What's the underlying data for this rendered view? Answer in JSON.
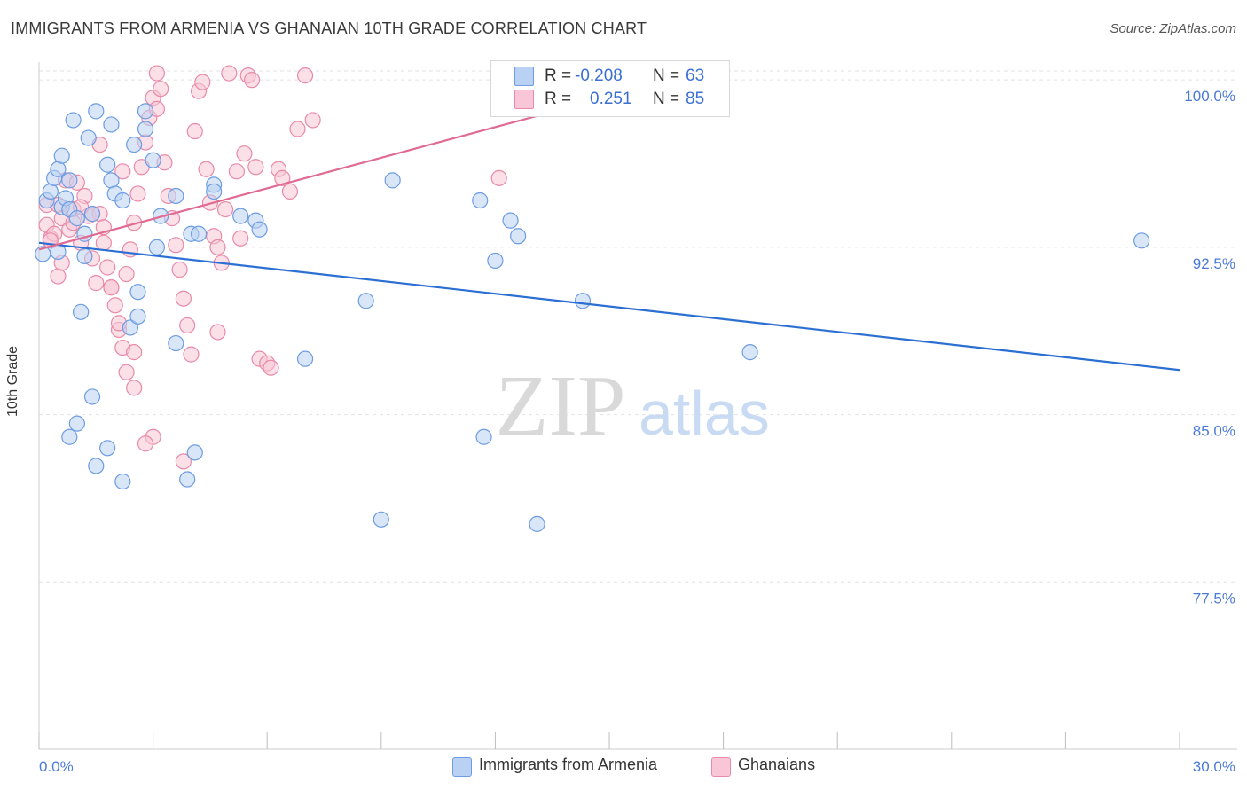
{
  "title": "IMMIGRANTS FROM ARMENIA VS GHANAIAN 10TH GRADE CORRELATION CHART",
  "source": "Source: ZipAtlas.com",
  "watermark_zip": "ZIP",
  "watermark_atlas": "atlas",
  "colors": {
    "blue_fill": "#b9d1f3",
    "blue_stroke": "#6d9ce2",
    "blue_line": "#2b6fd3",
    "pink_fill": "#f8c6d6",
    "pink_stroke": "#e98aa9",
    "pink_line": "#e06a92",
    "grid": "#e2e2e2",
    "tick_text": "#4b7bd6"
  },
  "stats": {
    "r_label": "R =",
    "n_label": "N =",
    "blue_r": "-0.208",
    "blue_n": "63",
    "pink_r": "0.251",
    "pink_n": "85"
  },
  "legend": {
    "blue": "Immigrants from Armenia",
    "pink": "Ghanaians"
  },
  "chart_data": {
    "type": "scatter",
    "title": "IMMIGRANTS FROM ARMENIA VS GHANAIAN 10TH GRADE CORRELATION CHART",
    "xlabel": "",
    "ylabel": "10th Grade",
    "xlim": [
      0.0,
      30.0
    ],
    "ylim": [
      70.0,
      100.8
    ],
    "x_tick_labels": [
      "0.0%",
      "30.0%"
    ],
    "y_ticks": [
      77.5,
      85.0,
      92.5,
      100.0
    ],
    "y_tick_labels": [
      "77.5%",
      "85.0%",
      "92.5%",
      "100.0%"
    ],
    "grid": true,
    "series": [
      {
        "name": "Immigrants from Armenia",
        "color": "blue",
        "r": -0.208,
        "n": 63,
        "trend": {
          "x": [
            0.0,
            30.0
          ],
          "y": [
            92.7,
            87.0
          ]
        },
        "points": [
          [
            0.1,
            92.2
          ],
          [
            0.2,
            94.6
          ],
          [
            0.3,
            95.0
          ],
          [
            0.4,
            95.6
          ],
          [
            0.5,
            92.3
          ],
          [
            0.5,
            96.0
          ],
          [
            0.6,
            96.6
          ],
          [
            0.6,
            94.3
          ],
          [
            0.7,
            94.7
          ],
          [
            0.8,
            95.5
          ],
          [
            0.8,
            94.2
          ],
          [
            0.9,
            98.2
          ],
          [
            1.0,
            93.8
          ],
          [
            1.1,
            89.6
          ],
          [
            1.2,
            92.1
          ],
          [
            1.2,
            93.1
          ],
          [
            1.3,
            97.4
          ],
          [
            1.4,
            94.0
          ],
          [
            1.5,
            98.6
          ],
          [
            1.8,
            96.2
          ],
          [
            1.9,
            98.0
          ],
          [
            1.9,
            95.5
          ],
          [
            2.0,
            94.9
          ],
          [
            2.2,
            94.6
          ],
          [
            2.4,
            88.9
          ],
          [
            2.6,
            89.4
          ],
          [
            2.6,
            90.5
          ],
          [
            2.8,
            97.8
          ],
          [
            2.8,
            98.6
          ],
          [
            3.1,
            92.5
          ],
          [
            3.2,
            93.9
          ],
          [
            3.6,
            94.8
          ],
          [
            4.0,
            93.1
          ],
          [
            4.6,
            95.3
          ],
          [
            4.6,
            95.0
          ],
          [
            4.1,
            83.3
          ],
          [
            3.6,
            88.2
          ],
          [
            3.9,
            82.1
          ],
          [
            3.0,
            96.4
          ],
          [
            2.5,
            97.1
          ],
          [
            0.8,
            84.0
          ],
          [
            1.0,
            84.6
          ],
          [
            1.4,
            85.8
          ],
          [
            1.5,
            82.7
          ],
          [
            1.8,
            83.5
          ],
          [
            2.2,
            82.0
          ],
          [
            5.7,
            93.7
          ],
          [
            5.8,
            93.3
          ],
          [
            7.0,
            87.5
          ],
          [
            8.6,
            90.1
          ],
          [
            9.3,
            95.5
          ],
          [
            9.0,
            80.3
          ],
          [
            11.6,
            94.6
          ],
          [
            11.7,
            84.0
          ],
          [
            12.0,
            91.9
          ],
          [
            12.4,
            93.7
          ],
          [
            12.6,
            93.0
          ],
          [
            13.1,
            80.1
          ],
          [
            14.3,
            90.1
          ],
          [
            18.7,
            87.8
          ],
          [
            29.0,
            92.8
          ],
          [
            4.2,
            93.1
          ],
          [
            5.3,
            93.9
          ]
        ]
      },
      {
        "name": "Ghanaians",
        "color": "pink",
        "r": 0.251,
        "n": 85,
        "trend": {
          "x": [
            0.0,
            15.1
          ],
          "y": [
            92.4,
            99.3
          ]
        },
        "points": [
          [
            0.2,
            94.4
          ],
          [
            0.2,
            93.5
          ],
          [
            0.3,
            92.9
          ],
          [
            0.4,
            93.1
          ],
          [
            0.5,
            91.2
          ],
          [
            0.5,
            94.4
          ],
          [
            0.6,
            93.8
          ],
          [
            0.7,
            95.5
          ],
          [
            0.8,
            93.3
          ],
          [
            0.9,
            94.2
          ],
          [
            1.0,
            95.4
          ],
          [
            1.1,
            92.7
          ],
          [
            1.2,
            94.8
          ],
          [
            1.3,
            93.9
          ],
          [
            1.4,
            92.0
          ],
          [
            1.5,
            90.9
          ],
          [
            1.6,
            94.0
          ],
          [
            1.7,
            92.7
          ],
          [
            1.8,
            91.6
          ],
          [
            1.9,
            90.7
          ],
          [
            2.0,
            89.9
          ],
          [
            2.1,
            88.8
          ],
          [
            2.2,
            88.0
          ],
          [
            2.3,
            91.3
          ],
          [
            2.4,
            92.4
          ],
          [
            2.5,
            93.6
          ],
          [
            2.6,
            94.9
          ],
          [
            2.7,
            96.1
          ],
          [
            2.8,
            97.2
          ],
          [
            2.9,
            98.3
          ],
          [
            3.0,
            99.2
          ],
          [
            3.1,
            100.3
          ],
          [
            3.2,
            99.6
          ],
          [
            3.3,
            96.3
          ],
          [
            3.4,
            94.8
          ],
          [
            3.5,
            93.8
          ],
          [
            3.6,
            92.6
          ],
          [
            3.7,
            91.5
          ],
          [
            3.8,
            90.2
          ],
          [
            3.9,
            89.0
          ],
          [
            4.0,
            87.7
          ],
          [
            4.1,
            97.7
          ],
          [
            4.2,
            99.5
          ],
          [
            4.3,
            99.9
          ],
          [
            4.4,
            96.0
          ],
          [
            4.5,
            94.5
          ],
          [
            4.6,
            93.0
          ],
          [
            4.7,
            92.5
          ],
          [
            4.8,
            91.8
          ],
          [
            5.0,
            100.3
          ],
          [
            5.2,
            95.9
          ],
          [
            5.4,
            96.7
          ],
          [
            5.5,
            100.2
          ],
          [
            5.6,
            100.0
          ],
          [
            5.8,
            87.5
          ],
          [
            6.0,
            87.3
          ],
          [
            6.1,
            87.1
          ],
          [
            6.3,
            96.0
          ],
          [
            6.4,
            95.6
          ],
          [
            6.6,
            95.0
          ],
          [
            6.8,
            97.8
          ],
          [
            7.0,
            100.2
          ],
          [
            7.2,
            98.2
          ],
          [
            1.9,
            90.7
          ],
          [
            2.1,
            89.1
          ],
          [
            2.3,
            86.9
          ],
          [
            2.5,
            86.2
          ],
          [
            3.0,
            84.0
          ],
          [
            2.8,
            83.7
          ],
          [
            3.8,
            82.9
          ],
          [
            1.4,
            94.0
          ],
          [
            0.9,
            93.6
          ],
          [
            1.6,
            97.1
          ],
          [
            2.2,
            95.9
          ],
          [
            3.1,
            98.7
          ],
          [
            4.9,
            94.2
          ],
          [
            5.3,
            92.9
          ],
          [
            5.7,
            96.1
          ],
          [
            0.3,
            92.8
          ],
          [
            0.6,
            91.8
          ],
          [
            1.1,
            94.3
          ],
          [
            1.7,
            93.4
          ],
          [
            2.5,
            87.8
          ],
          [
            4.7,
            88.7
          ],
          [
            12.1,
            95.6
          ]
        ]
      }
    ]
  }
}
